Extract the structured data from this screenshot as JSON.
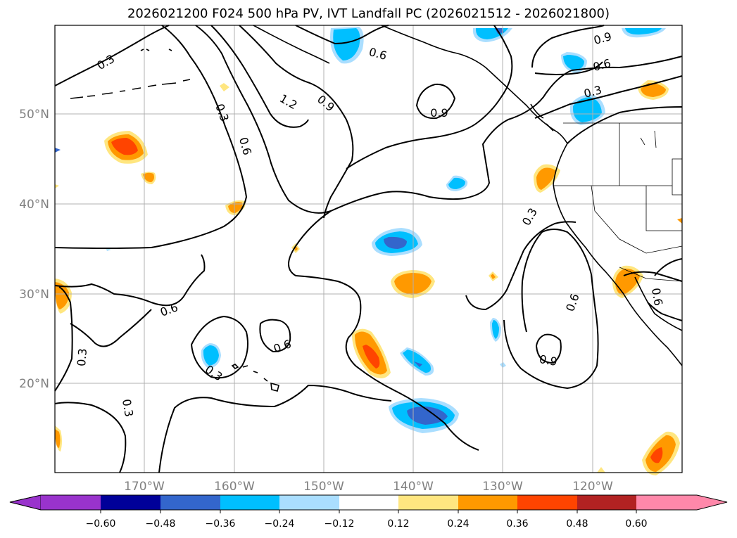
{
  "title": "2026021200 F024 500 hPa PV, IVT Landfall PC (2026021512 - 2026021800)",
  "map": {
    "lat_labels": [
      "50°N",
      "40°N",
      "30°N",
      "20°N"
    ],
    "lon_labels": [
      "170°W",
      "160°W",
      "150°W",
      "140°W",
      "130°W",
      "120°W"
    ],
    "contour_labels": [
      "0.3",
      "0.3",
      "0.6",
      "1.2",
      "0.9",
      "0.6",
      "0.9",
      "0.6",
      "0.9",
      "0.3",
      "0.3",
      "0.6",
      "0.6",
      "0.3",
      "0.9",
      "0.3",
      "0.3",
      "0.6",
      "0.6"
    ]
  },
  "colorbar": {
    "tick_labels": [
      "−0.60",
      "−0.48",
      "−0.36",
      "−0.24",
      "−0.12",
      "0.12",
      "0.24",
      "0.36",
      "0.48",
      "0.60"
    ],
    "colors": [
      "#9933cc",
      "#000099",
      "#3366cc",
      "#00bfff",
      "#aadeff",
      "#ffffff",
      "#ffe680",
      "#ff9900",
      "#ff4400",
      "#b22222",
      "#ff88aa"
    ]
  }
}
